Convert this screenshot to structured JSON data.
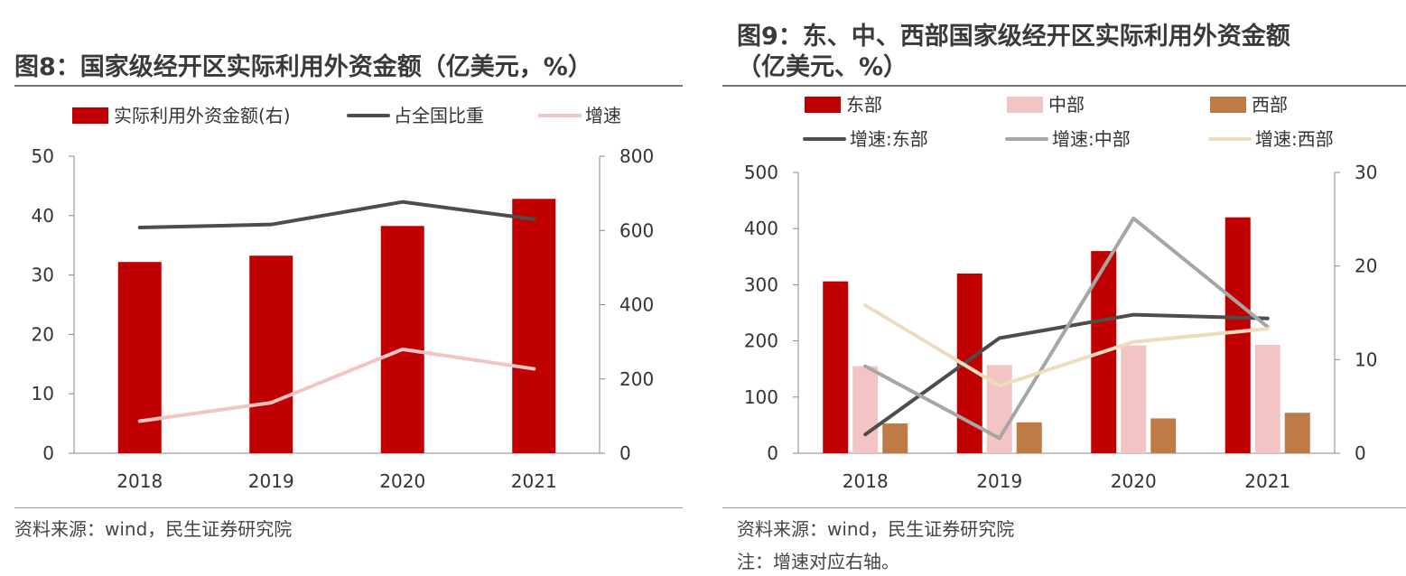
{
  "left": {
    "title": "图8：国家级经开区实际利用外资金额（亿美元，%）",
    "source": "资料来源：wind，民生证券研究院",
    "chart_data": {
      "type": "bar",
      "categories": [
        "2018",
        "2019",
        "2020",
        "2021"
      ],
      "series": [
        {
          "name": "实际利用外资金额(右)",
          "kind": "bar",
          "axis": "right",
          "color": "#c00000",
          "values": [
            515,
            532,
            612,
            685
          ]
        },
        {
          "name": "占全国比重",
          "kind": "line",
          "axis": "left",
          "color": "#4d4d4d",
          "values": [
            38.0,
            38.5,
            42.3,
            39.4
          ]
        },
        {
          "name": "增速",
          "kind": "line",
          "axis": "left",
          "color": "#f2c4c4",
          "values": [
            5.4,
            8.5,
            17.5,
            14.2
          ]
        }
      ],
      "left_axis": {
        "min": 0,
        "max": 50,
        "ticks": [
          "0",
          "10",
          "20",
          "30",
          "40",
          "50"
        ]
      },
      "right_axis": {
        "min": 0,
        "max": 800,
        "ticks": [
          "0",
          "200",
          "400",
          "600",
          "800"
        ]
      },
      "grid": false,
      "legend": "top"
    }
  },
  "right": {
    "title_line1": "图9：东、中、西部国家级经开区实际利用外资金额",
    "title_line2": "（亿美元、%）",
    "source": "资料来源：wind，民生证券研究院",
    "note": "注：增速对应右轴。",
    "chart_data": {
      "type": "bar",
      "categories": [
        "2018",
        "2019",
        "2020",
        "2021"
      ],
      "series": [
        {
          "name": "东部",
          "kind": "bar",
          "axis": "left",
          "color": "#c00000",
          "values": [
            306,
            320,
            360,
            420
          ]
        },
        {
          "name": "中部",
          "kind": "bar",
          "axis": "left",
          "color": "#f2c4c4",
          "values": [
            155,
            157,
            192,
            193
          ]
        },
        {
          "name": "西部",
          "kind": "bar",
          "axis": "left",
          "color": "#bf7b45",
          "values": [
            53,
            55,
            62,
            72
          ]
        },
        {
          "name": "增速:东部",
          "kind": "line",
          "axis": "right",
          "color": "#4d4d4d",
          "values": [
            2.0,
            12.3,
            14.8,
            14.4
          ]
        },
        {
          "name": "增速:中部",
          "kind": "line",
          "axis": "right",
          "color": "#a6a6a6",
          "values": [
            9.3,
            1.6,
            25.1,
            13.5
          ]
        },
        {
          "name": "增速:西部",
          "kind": "line",
          "axis": "right",
          "color": "#eedcbf",
          "values": [
            15.8,
            7.2,
            11.9,
            13.3
          ]
        }
      ],
      "left_axis": {
        "min": 0,
        "max": 500,
        "ticks": [
          "0",
          "100",
          "200",
          "300",
          "400",
          "500"
        ]
      },
      "right_axis": {
        "min": 0,
        "max": 30,
        "ticks": [
          "0",
          "10",
          "20",
          "30"
        ]
      },
      "grid": false,
      "legend": "top"
    }
  }
}
